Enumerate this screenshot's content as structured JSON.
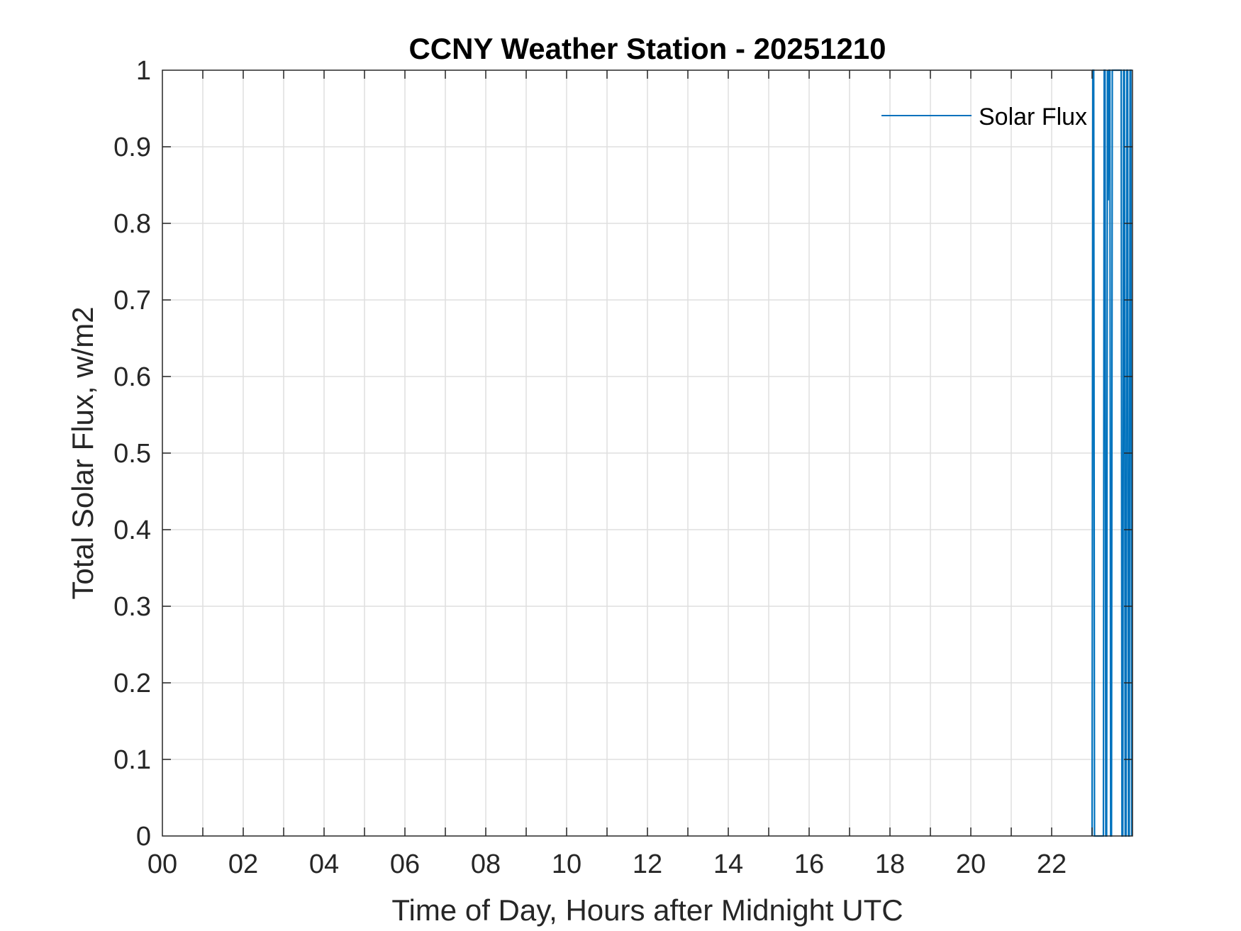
{
  "chart_data": {
    "type": "line",
    "title": "CCNY Weather Station - 20251210",
    "xlabel": "Time of Day, Hours after Midnight UTC",
    "ylabel": "Total Solar Flux, w/m2",
    "xlim": [
      0,
      24
    ],
    "ylim": [
      0,
      1
    ],
    "xticks": [
      0,
      2,
      4,
      6,
      8,
      10,
      12,
      14,
      16,
      18,
      20,
      22
    ],
    "xtick_labels": [
      "00",
      "02",
      "04",
      "06",
      "08",
      "10",
      "12",
      "14",
      "16",
      "18",
      "20",
      "22"
    ],
    "xgrid_step": 1,
    "yticks": [
      0,
      0.1,
      0.2,
      0.3,
      0.4,
      0.5,
      0.6,
      0.7,
      0.8,
      0.9,
      1
    ],
    "ytick_labels": [
      "0",
      "0.1",
      "0.2",
      "0.3",
      "0.4",
      "0.5",
      "0.6",
      "0.7",
      "0.8",
      "0.9",
      "1"
    ],
    "grid": true,
    "legend_position": "top-right",
    "series_color": "#0072BD",
    "series": [
      {
        "name": "Solar Flux",
        "x": [
          23.0,
          23.02,
          23.04,
          23.06,
          23.28,
          23.3,
          23.32,
          23.34,
          23.36,
          23.38,
          23.4,
          23.42,
          23.44,
          23.46,
          23.48,
          23.5,
          23.72,
          23.74,
          23.76,
          23.78,
          23.8,
          23.82,
          23.84,
          23.86,
          23.88,
          23.9,
          23.92,
          23.94,
          23.96,
          23.98
        ],
        "y": [
          0,
          1,
          1,
          0,
          0,
          1,
          1,
          0,
          0,
          1,
          0.83,
          1,
          1,
          0,
          0,
          1,
          1,
          0,
          0,
          1,
          1,
          0,
          0,
          1,
          1,
          0,
          0,
          1,
          1,
          0
        ]
      }
    ]
  }
}
